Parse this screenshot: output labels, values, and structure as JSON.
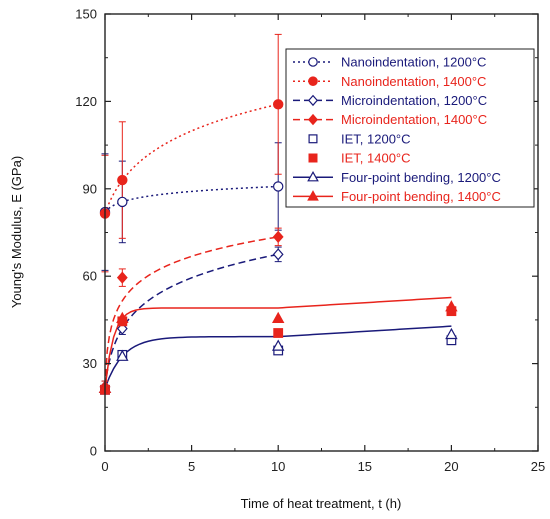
{
  "chart_data": {
    "type": "scatter",
    "xlabel": "Time of heat treatment, t (h)",
    "ylabel": "Young's Modulus, E (GPa)",
    "xlim": [
      0,
      25
    ],
    "ylim": [
      0,
      150
    ],
    "xticks": [
      0,
      5,
      10,
      15,
      20,
      25
    ],
    "yticks": [
      0,
      30,
      60,
      90,
      120,
      150
    ],
    "grid": false,
    "legend": "top-right",
    "colors": {
      "1200C": "#1a1a7a",
      "1400C": "#e8241c"
    },
    "series": [
      {
        "name": "Nanoindentation, 1200°C",
        "marker": "circle-open",
        "line": "dotted",
        "temp": "1200C",
        "x": [
          0,
          1,
          10
        ],
        "y": [
          82,
          85.5,
          90.8
        ],
        "yerr": [
          20,
          14,
          15
        ]
      },
      {
        "name": "Nanoindentation, 1400°C",
        "marker": "circle-filled",
        "line": "dotted",
        "temp": "1400C",
        "x": [
          0,
          1,
          10
        ],
        "y": [
          81.5,
          93,
          119
        ],
        "yerr": [
          20,
          20,
          24
        ]
      },
      {
        "name": "Microindentation, 1200°C",
        "marker": "diamond-open",
        "line": "dashed",
        "temp": "1200C",
        "x": [
          0,
          1,
          10
        ],
        "y": [
          22,
          42,
          67.5
        ],
        "yerr": [
          2,
          2,
          2.5
        ]
      },
      {
        "name": "Microindentation, 1400°C",
        "marker": "diamond-filled",
        "line": "dashed",
        "temp": "1400C",
        "x": [
          0,
          1,
          10
        ],
        "y": [
          22,
          59.5,
          73.5
        ],
        "yerr": [
          2,
          3,
          3
        ]
      },
      {
        "name": "IET, 1200°C",
        "marker": "square-open",
        "line": "none",
        "temp": "1200C",
        "x": [
          0,
          1,
          10,
          20
        ],
        "y": [
          21,
          33,
          34.5,
          38
        ]
      },
      {
        "name": "IET, 1400°C",
        "marker": "square-filled",
        "line": "none",
        "temp": "1400C",
        "x": [
          0,
          1,
          10,
          20
        ],
        "y": [
          21,
          44.5,
          40.5,
          48
        ]
      },
      {
        "name": "Four-point bending, 1200°C",
        "marker": "triangle-open",
        "line": "solid",
        "temp": "1200C",
        "x": [
          0,
          1,
          10,
          20
        ],
        "y": [
          21.5,
          32.5,
          36,
          40
        ]
      },
      {
        "name": "Four-point bending, 1400°C",
        "marker": "triangle-filled",
        "line": "solid",
        "temp": "1400C",
        "x": [
          0,
          1,
          10,
          20
        ],
        "y": [
          21.5,
          45.5,
          45.5,
          49.5
        ]
      }
    ]
  }
}
